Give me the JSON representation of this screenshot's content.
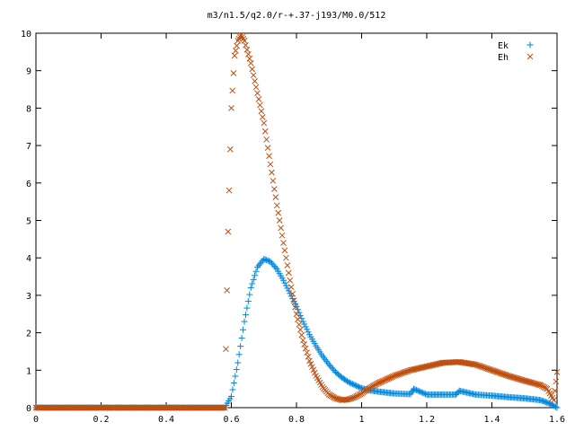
{
  "chart_data": {
    "type": "scatter",
    "title": "m3/n1.5/q2.0/r-+.37-j193/M0.0/512",
    "xlabel": "",
    "ylabel": "",
    "xlim": [
      0,
      1.6
    ],
    "ylim": [
      0,
      10
    ],
    "x_ticks": [
      "0",
      "0.2",
      "0.4",
      "0.6",
      "0.8",
      "1",
      "1.2",
      "1.4",
      "1.6"
    ],
    "y_ticks": [
      "0",
      "1",
      "2",
      "3",
      "4",
      "5",
      "6",
      "7",
      "8",
      "9",
      "10"
    ],
    "grid": false,
    "legend_position": "top-right",
    "series": [
      {
        "name": "Ek",
        "marker": "plus",
        "color": "#0088dd",
        "x": [
          0.0,
          0.1,
          0.2,
          0.3,
          0.4,
          0.5,
          0.58,
          0.6,
          0.62,
          0.64,
          0.66,
          0.68,
          0.7,
          0.72,
          0.74,
          0.76,
          0.78,
          0.8,
          0.82,
          0.84,
          0.86,
          0.88,
          0.9,
          0.92,
          0.94,
          0.96,
          0.98,
          1.0,
          1.02,
          1.05,
          1.1,
          1.15,
          1.16,
          1.2,
          1.25,
          1.29,
          1.3,
          1.35,
          1.4,
          1.45,
          1.5,
          1.55,
          1.58,
          1.6
        ],
        "y": [
          0.0,
          0.0,
          0.0,
          0.0,
          0.0,
          0.0,
          0.0,
          0.3,
          1.2,
          2.3,
          3.2,
          3.75,
          3.97,
          3.9,
          3.7,
          3.4,
          3.05,
          2.7,
          2.3,
          1.95,
          1.65,
          1.38,
          1.15,
          0.95,
          0.8,
          0.68,
          0.6,
          0.52,
          0.47,
          0.43,
          0.38,
          0.36,
          0.5,
          0.35,
          0.35,
          0.35,
          0.45,
          0.35,
          0.32,
          0.28,
          0.25,
          0.2,
          0.1,
          0.0
        ]
      },
      {
        "name": "Eh",
        "marker": "cross",
        "color": "#c05010",
        "x": [
          0.0,
          0.1,
          0.2,
          0.3,
          0.4,
          0.5,
          0.58,
          0.59,
          0.6,
          0.61,
          0.62,
          0.63,
          0.64,
          0.66,
          0.68,
          0.7,
          0.72,
          0.74,
          0.76,
          0.78,
          0.8,
          0.82,
          0.84,
          0.86,
          0.88,
          0.9,
          0.92,
          0.94,
          0.96,
          0.98,
          1.0,
          1.02,
          1.05,
          1.1,
          1.15,
          1.2,
          1.25,
          1.3,
          1.35,
          1.4,
          1.45,
          1.5,
          1.55,
          1.57,
          1.59,
          1.6
        ],
        "y": [
          0.0,
          0.0,
          0.0,
          0.0,
          0.0,
          0.0,
          0.0,
          4.7,
          8.0,
          9.4,
          9.8,
          9.95,
          9.8,
          9.2,
          8.4,
          7.6,
          6.5,
          5.4,
          4.4,
          3.4,
          2.5,
          1.8,
          1.25,
          0.85,
          0.55,
          0.35,
          0.25,
          0.2,
          0.22,
          0.28,
          0.38,
          0.5,
          0.65,
          0.85,
          1.0,
          1.1,
          1.2,
          1.22,
          1.15,
          1.0,
          0.85,
          0.72,
          0.6,
          0.5,
          0.2,
          0.95
        ]
      }
    ]
  }
}
